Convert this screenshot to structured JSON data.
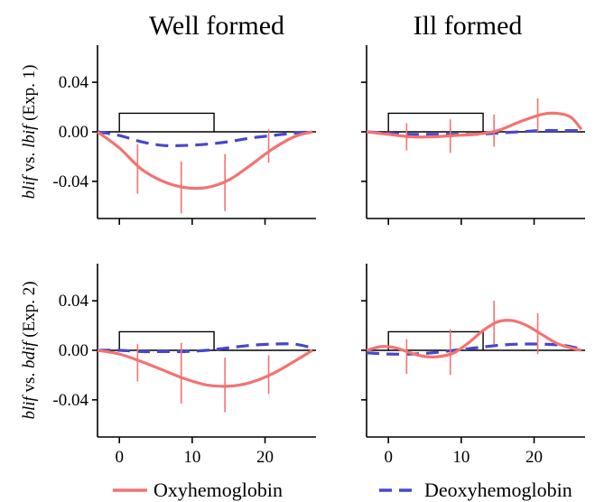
{
  "chart_data": {
    "type": "line",
    "column_titles": [
      "Well formed",
      "Ill formed"
    ],
    "row_labels": [
      {
        "italic1": "blif",
        "mid": " vs. ",
        "italic2": "lbif",
        "tail": " (Exp. 1)"
      },
      {
        "italic1": "blif",
        "mid": " vs. ",
        "italic2": "bdif",
        "tail": " (Exp. 2)"
      }
    ],
    "xlim": [
      -3,
      27
    ],
    "ylim": [
      -0.07,
      0.07
    ],
    "x_ticks": [
      0,
      10,
      20
    ],
    "x_tick_labels": [
      "0",
      "10",
      "20"
    ],
    "y_ticks": [
      0.04,
      0,
      -0.04
    ],
    "y_tick_labels": [
      "0.04",
      "0.00",
      "-0.04"
    ],
    "stimulus_block": {
      "start": 0,
      "end": 13,
      "level": 0.015
    },
    "legend": [
      {
        "name": "Oxyhemoglobin",
        "color": "#f47272",
        "style": "solid"
      },
      {
        "name": "Deoxyhemoglobin",
        "color": "#4747cc",
        "style": "dashed"
      }
    ],
    "colors": {
      "oxy": "#f47272",
      "deoxy": "#4747cc",
      "stimulus": "#000000"
    },
    "panels": [
      {
        "id": "well-exp1",
        "oxy": {
          "x": [
            -3,
            0,
            3,
            6,
            9,
            12,
            15,
            18,
            21,
            24,
            26.5
          ],
          "y": [
            0,
            -0.013,
            -0.03,
            -0.04,
            -0.045,
            -0.045,
            -0.039,
            -0.027,
            -0.014,
            -0.004,
            0
          ]
        },
        "deoxy": {
          "x": [
            -3,
            0,
            3,
            6,
            9,
            12,
            15,
            18,
            21,
            24,
            26.5
          ],
          "y": [
            0,
            -0.003,
            -0.008,
            -0.011,
            -0.011,
            -0.01,
            -0.008,
            -0.005,
            -0.003,
            -0.001,
            0
          ]
        },
        "error_bars": [
          {
            "x": 2.5,
            "lo": -0.05,
            "hi": -0.01
          },
          {
            "x": 8.5,
            "lo": -0.066,
            "hi": -0.024
          },
          {
            "x": 14.5,
            "lo": -0.064,
            "hi": -0.018
          },
          {
            "x": 20.5,
            "lo": -0.025,
            "hi": 0.002
          }
        ]
      },
      {
        "id": "ill-exp1",
        "oxy": {
          "x": [
            -3,
            0,
            3,
            6,
            9,
            12,
            15,
            18,
            21,
            23,
            25,
            26.5
          ],
          "y": [
            0,
            -0.002,
            -0.004,
            -0.004,
            -0.003,
            -0.002,
            0.001,
            0.008,
            0.014,
            0.015,
            0.012,
            0.002
          ]
        },
        "deoxy": {
          "x": [
            -3,
            0,
            3,
            6,
            9,
            12,
            15,
            18,
            21,
            24,
            26.5
          ],
          "y": [
            0,
            -0.001,
            -0.002,
            -0.002,
            -0.002,
            -0.002,
            -0.001,
            0,
            0.001,
            0.001,
            0.001
          ]
        },
        "error_bars": [
          {
            "x": 2.5,
            "lo": -0.015,
            "hi": 0.007
          },
          {
            "x": 8.5,
            "lo": -0.017,
            "hi": 0.01
          },
          {
            "x": 14.5,
            "lo": -0.012,
            "hi": 0.014
          },
          {
            "x": 20.5,
            "lo": 0,
            "hi": 0.027
          }
        ]
      },
      {
        "id": "well-exp2",
        "oxy": {
          "x": [
            -3,
            0,
            3,
            6,
            9,
            12,
            15,
            18,
            21,
            24,
            26.5
          ],
          "y": [
            0,
            -0.003,
            -0.009,
            -0.016,
            -0.023,
            -0.028,
            -0.029,
            -0.026,
            -0.019,
            -0.009,
            0
          ]
        },
        "deoxy": {
          "x": [
            -3,
            0,
            3,
            6,
            9,
            12,
            15,
            18,
            21,
            24,
            26.5
          ],
          "y": [
            0,
            0,
            -0.001,
            -0.001,
            -0.001,
            0,
            0.002,
            0.004,
            0.005,
            0.005,
            0.002
          ]
        },
        "error_bars": [
          {
            "x": 2.5,
            "lo": -0.025,
            "hi": 0.005
          },
          {
            "x": 8.5,
            "lo": -0.043,
            "hi": 0.006
          },
          {
            "x": 14.5,
            "lo": -0.05,
            "hi": -0.006
          },
          {
            "x": 20.5,
            "lo": -0.035,
            "hi": -0.004
          }
        ]
      },
      {
        "id": "ill-exp2",
        "oxy": {
          "x": [
            -3,
            -1,
            1,
            3,
            5,
            7,
            9,
            11,
            13,
            15,
            17,
            19,
            21,
            23,
            25,
            26.5
          ],
          "y": [
            0,
            0.003,
            0.002,
            -0.002,
            -0.005,
            -0.005,
            -0.002,
            0.006,
            0.016,
            0.023,
            0.024,
            0.02,
            0.013,
            0.006,
            0.002,
            0
          ]
        },
        "deoxy": {
          "x": [
            -3,
            0,
            3,
            6,
            9,
            12,
            15,
            18,
            21,
            24,
            26.5
          ],
          "y": [
            -0.002,
            -0.003,
            -0.003,
            -0.002,
            0,
            0.002,
            0.004,
            0.005,
            0.005,
            0.004,
            0.001
          ]
        },
        "error_bars": [
          {
            "x": 2.5,
            "lo": -0.019,
            "hi": 0.009
          },
          {
            "x": 8.5,
            "lo": -0.02,
            "hi": 0.017
          },
          {
            "x": 14.5,
            "lo": 0.005,
            "hi": 0.04
          },
          {
            "x": 20.5,
            "lo": -0.003,
            "hi": 0.03
          }
        ]
      }
    ]
  }
}
